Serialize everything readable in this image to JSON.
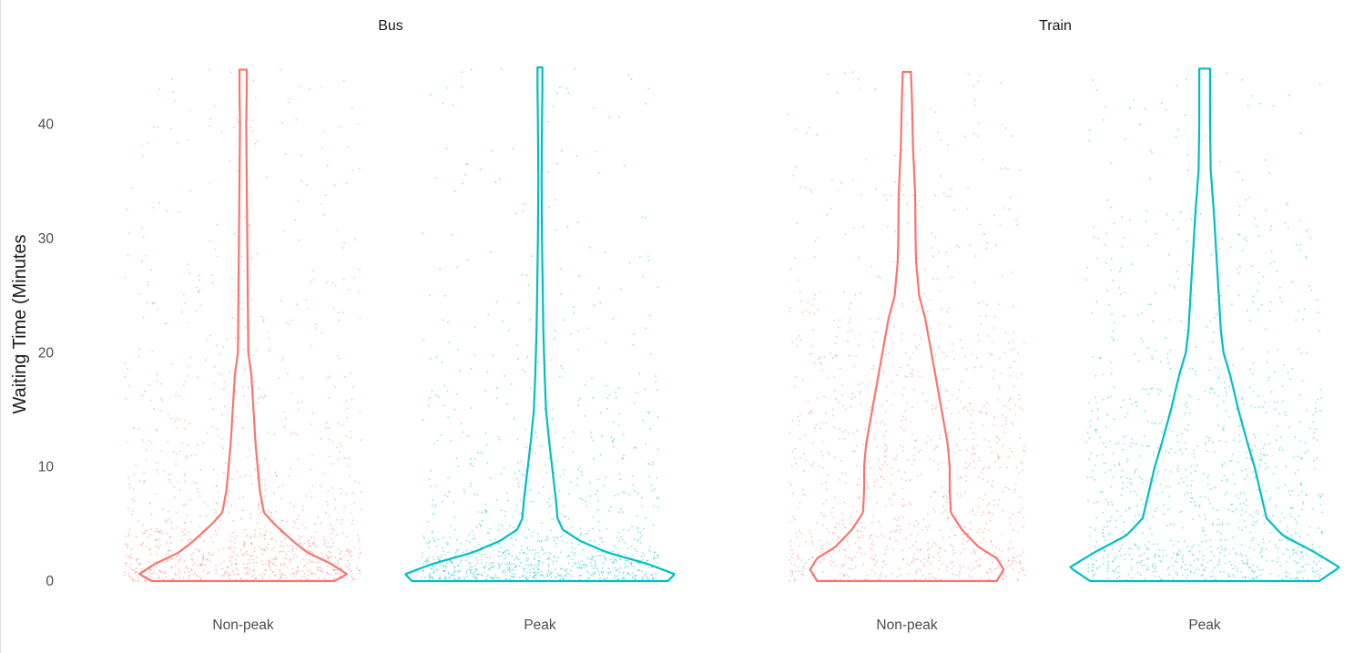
{
  "chart_data": {
    "type": "violin",
    "ylabel": "Waiting Time (Minutes",
    "ylim": [
      0,
      45
    ],
    "yticks": [
      0,
      10,
      20,
      30,
      40
    ],
    "grid": false,
    "legend": "none",
    "colors": {
      "Non-peak": "#F8766D",
      "Peak": "#00BFC4"
    },
    "facets": [
      {
        "label": "Bus",
        "groups": [
          {
            "name": "Non-peak",
            "max": 44.8,
            "profile": [
              [
                0,
                0.88
              ],
              [
                0.6,
                1.0
              ],
              [
                1.5,
                0.85
              ],
              [
                2.5,
                0.62
              ],
              [
                3.5,
                0.48
              ],
              [
                5,
                0.3
              ],
              [
                6,
                0.2
              ],
              [
                8,
                0.16
              ],
              [
                10,
                0.14
              ],
              [
                12,
                0.12
              ],
              [
                15,
                0.1
              ],
              [
                18,
                0.08
              ],
              [
                20,
                0.05
              ],
              [
                25,
                0.045
              ],
              [
                30,
                0.04
              ],
              [
                35,
                0.035
              ],
              [
                40,
                0.03
              ],
              [
                43,
                0.035
              ],
              [
                44.8,
                0.035
              ]
            ]
          },
          {
            "name": "Peak",
            "max": 45.0,
            "profile": [
              [
                0,
                0.95
              ],
              [
                0.6,
                1.0
              ],
              [
                1.5,
                0.8
              ],
              [
                2.5,
                0.5
              ],
              [
                3.5,
                0.3
              ],
              [
                4.5,
                0.17
              ],
              [
                5.5,
                0.13
              ],
              [
                7,
                0.12
              ],
              [
                9,
                0.1
              ],
              [
                12,
                0.07
              ],
              [
                15,
                0.045
              ],
              [
                18,
                0.035
              ],
              [
                22,
                0.025
              ],
              [
                26,
                0.02
              ],
              [
                30,
                0.015
              ],
              [
                35,
                0.012
              ],
              [
                40,
                0.015
              ],
              [
                43,
                0.018
              ],
              [
                45,
                0.018
              ]
            ]
          }
        ]
      },
      {
        "label": "Train",
        "groups": [
          {
            "name": "Non-peak",
            "max": 44.6,
            "profile": [
              [
                0,
                0.88
              ],
              [
                1,
                0.95
              ],
              [
                2,
                0.88
              ],
              [
                3,
                0.7
              ],
              [
                4.5,
                0.54
              ],
              [
                6,
                0.43
              ],
              [
                8,
                0.42
              ],
              [
                10,
                0.42
              ],
              [
                12,
                0.4
              ],
              [
                15,
                0.34
              ],
              [
                18,
                0.28
              ],
              [
                20,
                0.24
              ],
              [
                23,
                0.18
              ],
              [
                25,
                0.12
              ],
              [
                28,
                0.09
              ],
              [
                30,
                0.085
              ],
              [
                34,
                0.08
              ],
              [
                38,
                0.06
              ],
              [
                42,
                0.05
              ],
              [
                44.6,
                0.04
              ]
            ]
          },
          {
            "name": "Peak",
            "max": 44.9,
            "profile": [
              [
                0,
                0.85
              ],
              [
                1.2,
                1.0
              ],
              [
                2.5,
                0.82
              ],
              [
                4,
                0.58
              ],
              [
                5.5,
                0.46
              ],
              [
                7.5,
                0.42
              ],
              [
                10,
                0.37
              ],
              [
                12,
                0.32
              ],
              [
                15,
                0.25
              ],
              [
                18,
                0.19
              ],
              [
                20,
                0.14
              ],
              [
                22,
                0.12
              ],
              [
                25,
                0.105
              ],
              [
                28,
                0.09
              ],
              [
                32,
                0.07
              ],
              [
                36,
                0.045
              ],
              [
                40,
                0.04
              ],
              [
                44.9,
                0.04
              ]
            ]
          }
        ]
      }
    ]
  }
}
